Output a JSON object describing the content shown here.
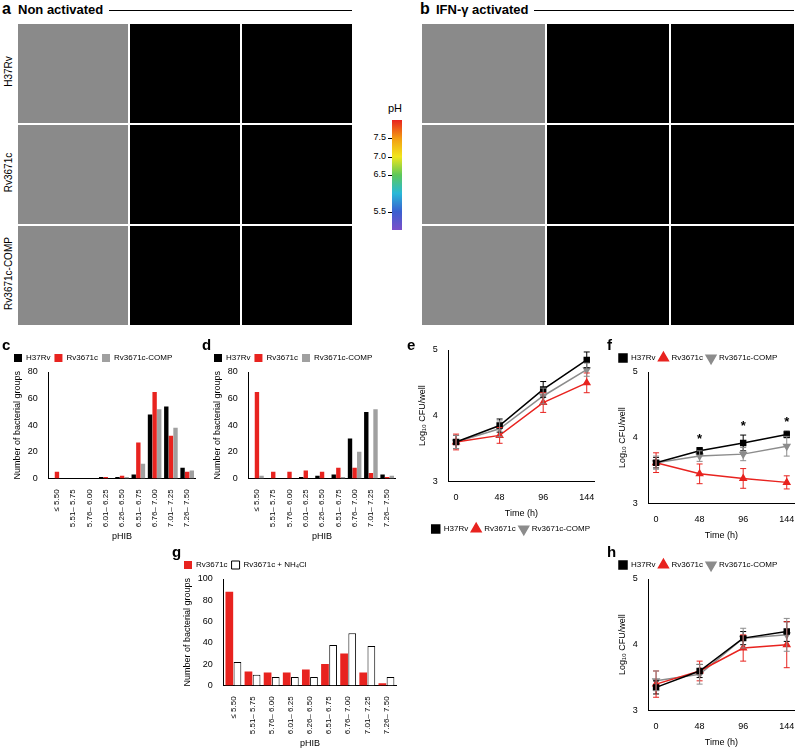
{
  "image_panels": [
    {
      "panel": "a",
      "title": "Non activated",
      "rows": [
        "H37Rv",
        "Rv3671c",
        "Rv3671c-COMP"
      ]
    },
    {
      "panel": "b",
      "title": "IFN-γ activated"
    }
  ],
  "colorbar": {
    "title": "pH",
    "range": [
      5.0,
      8.0
    ],
    "ticks": [
      5.5,
      6.5,
      {
        "value": 7,
        "label": "7.0"
      },
      7.5
    ]
  },
  "chart_data": [
    {
      "type": "bar",
      "panel": "c",
      "categories": [
        "≤ 5.50",
        "5.51– 5.75",
        "5.76– 6.00",
        "6.01– 6.25",
        "6.26– 6.50",
        "6.51– 6.75",
        "6.76– 7.00",
        "7.01– 7.25",
        "7.26– 7.50"
      ],
      "series": [
        {
          "name": "H37Rv",
          "color": "#000000",
          "values": [
            0,
            0,
            0,
            1,
            1,
            3,
            48,
            54,
            8
          ]
        },
        {
          "name": "Rv3671c",
          "color": "#e8231f",
          "values": [
            5,
            0,
            0,
            1,
            2,
            27,
            65,
            32,
            5
          ]
        },
        {
          "name": "Rv3671c-COMP",
          "color": "#a0a0a0",
          "values": [
            0,
            0,
            0,
            0,
            1,
            11,
            52,
            38,
            6
          ]
        }
      ],
      "x_label": "pHIB",
      "y_label": "Number of bacterial groups",
      "ylim": [
        0,
        80
      ],
      "yticks": [
        0,
        20,
        40,
        60,
        80
      ],
      "grid": false,
      "legend": "upper left"
    },
    {
      "type": "bar",
      "panel": "d",
      "categories": [
        "≤ 5.50",
        "5.51– 5.75",
        "5.76– 6.00",
        "6.01– 6.25",
        "6.26– 6.50",
        "6.51– 6.75",
        "6.76– 7.00",
        "7.01– 7.25",
        "7.26– 7.50"
      ],
      "series": [
        {
          "name": "H37Rv",
          "color": "#000000",
          "values": [
            0,
            0,
            0,
            1,
            2,
            3,
            30,
            50,
            3
          ]
        },
        {
          "name": "Rv3671c",
          "color": "#e8231f",
          "values": [
            65,
            5,
            5,
            6,
            5,
            8,
            8,
            4,
            1
          ]
        },
        {
          "name": "Rv3671c-COMP",
          "color": "#a0a0a0",
          "values": [
            2,
            0,
            0,
            0,
            0,
            1,
            20,
            52,
            2
          ]
        }
      ],
      "x_label": "pHIB",
      "y_label": "Number of bacterial groups",
      "ylim": [
        0,
        80
      ],
      "yticks": [
        0,
        20,
        40,
        60,
        80
      ],
      "grid": false,
      "legend": "upper left"
    },
    {
      "type": "line",
      "panel": "e",
      "x": [
        0,
        48,
        96,
        144
      ],
      "series": [
        {
          "name": "H37Rv",
          "color": "#000000",
          "marker": "square",
          "line_style": "solid",
          "values": [
            3.6,
            3.85,
            4.4,
            4.85
          ],
          "errors": [
            0.1,
            0.1,
            0.12,
            0.12
          ]
        },
        {
          "name": "Rv3671c",
          "color": "#e8231f",
          "marker": "triangle",
          "line_style": "solid",
          "values": [
            3.6,
            3.7,
            4.2,
            4.5
          ],
          "errors": [
            0.12,
            0.12,
            0.15,
            0.15
          ]
        },
        {
          "name": "Rv3671c-COMP",
          "color": "#8c8c8c",
          "marker": "triangle-down",
          "line_style": "solid",
          "values": [
            3.6,
            3.8,
            4.3,
            4.7
          ],
          "errors": [
            0.1,
            0.12,
            0.12,
            0.1
          ]
        }
      ],
      "x_label": "Time (h)",
      "y_label": "Log₁₀ CFU/well",
      "xlim": [
        -8,
        152
      ],
      "xticks": [
        0,
        48,
        96,
        144
      ],
      "ylim": [
        3,
        5
      ],
      "yticks": [
        3,
        4,
        5
      ],
      "grid": false,
      "legend": "lower right"
    },
    {
      "type": "line",
      "panel": "f",
      "x": [
        0,
        48,
        96,
        144
      ],
      "series": [
        {
          "name": "H37Rv",
          "color": "#000000",
          "marker": "square",
          "line_style": "solid",
          "values": [
            3.62,
            3.8,
            3.92,
            4.05
          ],
          "errors": [
            0.08,
            0.05,
            0.12,
            0.05
          ]
        },
        {
          "name": "Rv3671c",
          "color": "#e8231f",
          "marker": "triangle",
          "line_style": "solid",
          "values": [
            3.62,
            3.45,
            3.38,
            3.32
          ],
          "errors": [
            0.15,
            0.15,
            0.15,
            0.1
          ]
        },
        {
          "name": "Rv3671c-COMP",
          "color": "#8c8c8c",
          "marker": "triangle-down",
          "line_style": "solid",
          "values": [
            3.62,
            3.72,
            3.75,
            3.87
          ],
          "errors": [
            0.1,
            0.08,
            0.1,
            0.15
          ]
        }
      ],
      "annotations": [
        {
          "x": 48,
          "text": "*"
        },
        {
          "x": 96,
          "text": "*"
        },
        {
          "x": 144,
          "text": "*"
        }
      ],
      "x_label": "Time (h)",
      "y_label": "Log₁₀ CFU/well",
      "xlim": [
        -8,
        152
      ],
      "xticks": [
        0,
        48,
        96,
        144
      ],
      "ylim": [
        3,
        5
      ],
      "yticks": [
        3,
        4,
        5
      ],
      "grid": false,
      "legend": "upper left"
    },
    {
      "type": "bar",
      "panel": "g",
      "categories": [
        "≤ 5.50",
        "5.51– 5.75",
        "5.76– 6.00",
        "6.01– 6.25",
        "6.26– 6.50",
        "6.51– 6.75",
        "6.76– 7.00",
        "7.01– 7.25",
        "7.26– 7.50"
      ],
      "series": [
        {
          "name": "Rv3671c",
          "color": "#e8231f",
          "values": [
            88,
            13,
            12,
            12,
            15,
            20,
            30,
            12,
            2
          ]
        },
        {
          "name": "Rv3671c + NH₄Cl",
          "color": "#ffffff",
          "values": [
            22,
            10,
            8,
            8,
            8,
            38,
            49,
            37,
            8
          ]
        }
      ],
      "x_label": "pHIB",
      "y_label": "Number of bacterial groups",
      "ylim": [
        0,
        100
      ],
      "yticks": [
        0,
        20,
        40,
        60,
        80,
        100
      ],
      "grid": false,
      "legend": "upper left"
    },
    {
      "type": "line",
      "panel": "h",
      "x": [
        0,
        48,
        96,
        144
      ],
      "series": [
        {
          "name": "H37Rv",
          "color": "#000000",
          "marker": "square",
          "line_style": "solid",
          "values": [
            3.35,
            3.6,
            4.1,
            4.2
          ],
          "errors": [
            0.1,
            0.1,
            0.1,
            0.15
          ]
        },
        {
          "name": "Rv3671c",
          "color": "#e8231f",
          "marker": "triangle",
          "line_style": "solid",
          "values": [
            3.4,
            3.6,
            3.95,
            4.0
          ],
          "errors": [
            0.2,
            0.15,
            0.2,
            0.35
          ]
        },
        {
          "name": "Rv3671c-COMP",
          "color": "#8c8c8c",
          "marker": "triangle-down",
          "line_style": "solid",
          "values": [
            3.45,
            3.55,
            4.1,
            4.15
          ],
          "errors": [
            0.15,
            0.15,
            0.15,
            0.25
          ]
        }
      ],
      "x_label": "Time (h)",
      "y_label": "Log₁₀ CFU/well",
      "xlim": [
        -8,
        152
      ],
      "xticks": [
        0,
        48,
        96,
        144
      ],
      "ylim": [
        3,
        5
      ],
      "yticks": [
        3,
        4,
        5
      ],
      "grid": false,
      "legend": "upper left"
    }
  ]
}
